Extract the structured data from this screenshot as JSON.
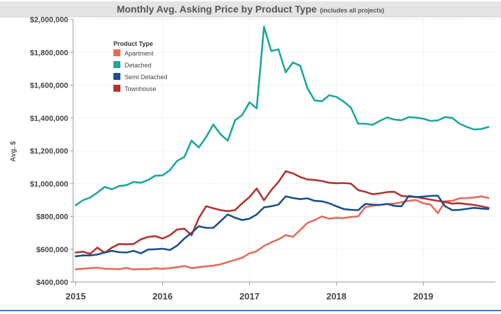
{
  "header": {
    "title": "Monthly Avg. Asking Price by Product Type",
    "subtitle": "(includes all projects)"
  },
  "legend": {
    "title": "Product Type"
  },
  "chart_data": {
    "type": "line",
    "title": "Monthly Avg. Asking Price by Product Type",
    "subtitle": "(includes all projects)",
    "ylabel": "Avg. $",
    "xlabel": "",
    "ylim": [
      400000,
      2000000
    ],
    "xlim": [
      2014.97,
      2019.83
    ],
    "y_ticks": [
      400000,
      600000,
      800000,
      1000000,
      1200000,
      1400000,
      1600000,
      1800000,
      2000000
    ],
    "y_tick_labels": [
      "$400,000",
      "$600,000",
      "$800,000",
      "$1,000,000",
      "$1,200,000",
      "$1,400,000",
      "$1,600,000",
      "$1,800,000",
      "$2,000,000"
    ],
    "x_ticks": [
      2015,
      2016,
      2017,
      2018,
      2019
    ],
    "x_tick_labels": [
      "2015",
      "2016",
      "2017",
      "2018",
      "2019"
    ],
    "grid": "dotted",
    "legend_position": "top-left",
    "x": [
      "2015-01",
      "2015-02",
      "2015-03",
      "2015-04",
      "2015-05",
      "2015-06",
      "2015-07",
      "2015-08",
      "2015-09",
      "2015-10",
      "2015-11",
      "2015-12",
      "2016-01",
      "2016-02",
      "2016-03",
      "2016-04",
      "2016-05",
      "2016-06",
      "2016-07",
      "2016-08",
      "2016-09",
      "2016-10",
      "2016-11",
      "2016-12",
      "2017-01",
      "2017-02",
      "2017-03",
      "2017-04",
      "2017-05",
      "2017-06",
      "2017-07",
      "2017-08",
      "2017-09",
      "2017-10",
      "2017-11",
      "2017-12",
      "2018-01",
      "2018-02",
      "2018-03",
      "2018-04",
      "2018-05",
      "2018-06",
      "2018-07",
      "2018-08",
      "2018-09",
      "2018-10",
      "2018-11",
      "2018-12",
      "2019-01",
      "2019-02",
      "2019-03",
      "2019-04",
      "2019-05",
      "2019-06",
      "2019-07",
      "2019-08",
      "2019-09",
      "2019-10"
    ],
    "series": [
      {
        "name": "Apartment",
        "color": "#e8695a",
        "values": [
          478000,
          481000,
          485000,
          487000,
          481000,
          480000,
          478000,
          486000,
          476000,
          479000,
          478000,
          484000,
          480000,
          485000,
          490000,
          498000,
          485000,
          490000,
          496000,
          500000,
          508000,
          522000,
          535000,
          548000,
          575000,
          588000,
          620000,
          642000,
          660000,
          686000,
          675000,
          718000,
          760000,
          778000,
          800000,
          786000,
          792000,
          790000,
          796000,
          800000,
          857000,
          865000,
          870000,
          875000,
          878000,
          886000,
          895000,
          900000,
          880000,
          872000,
          820000,
          892000,
          895000,
          910000,
          912000,
          915000,
          922000,
          912000
        ]
      },
      {
        "name": "Detached",
        "color": "#1aa89a",
        "values": [
          868000,
          898000,
          915000,
          945000,
          980000,
          965000,
          985000,
          990000,
          1010000,
          1005000,
          1022000,
          1048000,
          1050000,
          1082000,
          1138000,
          1162000,
          1262000,
          1220000,
          1282000,
          1360000,
          1300000,
          1262000,
          1385000,
          1418000,
          1495000,
          1458000,
          1955000,
          1808000,
          1818000,
          1678000,
          1738000,
          1718000,
          1582000,
          1506000,
          1502000,
          1538000,
          1528000,
          1500000,
          1463000,
          1365000,
          1365000,
          1358000,
          1382000,
          1403000,
          1390000,
          1386000,
          1405000,
          1402000,
          1395000,
          1382000,
          1385000,
          1405000,
          1400000,
          1365000,
          1345000,
          1330000,
          1332000,
          1345000
        ]
      },
      {
        "name": "Semi Detached",
        "color": "#1a4e8e",
        "values": [
          557000,
          562000,
          562000,
          568000,
          580000,
          590000,
          582000,
          580000,
          590000,
          575000,
          598000,
          600000,
          603000,
          595000,
          622000,
          665000,
          700000,
          740000,
          730000,
          730000,
          770000,
          812000,
          792000,
          778000,
          786000,
          812000,
          855000,
          862000,
          872000,
          922000,
          912000,
          905000,
          910000,
          895000,
          892000,
          880000,
          862000,
          845000,
          840000,
          838000,
          876000,
          872000,
          870000,
          876000,
          864000,
          862000,
          925000,
          918000,
          920000,
          925000,
          926000,
          862000,
          838000,
          840000,
          846000,
          852000,
          848000,
          845000
        ]
      },
      {
        "name": "Townhouse",
        "color": "#b3322d",
        "values": [
          580000,
          585000,
          572000,
          610000,
          578000,
          610000,
          632000,
          630000,
          632000,
          660000,
          675000,
          680000,
          665000,
          685000,
          720000,
          725000,
          685000,
          790000,
          862000,
          850000,
          838000,
          832000,
          838000,
          880000,
          918000,
          970000,
          898000,
          960000,
          1010000,
          1075000,
          1062000,
          1040000,
          1025000,
          1022000,
          1016000,
          1005000,
          1002000,
          1003000,
          1000000,
          960000,
          950000,
          935000,
          940000,
          948000,
          950000,
          925000,
          920000,
          918000,
          910000,
          902000,
          895000,
          888000,
          878000,
          880000,
          875000,
          870000,
          862000,
          852000
        ]
      }
    ]
  }
}
